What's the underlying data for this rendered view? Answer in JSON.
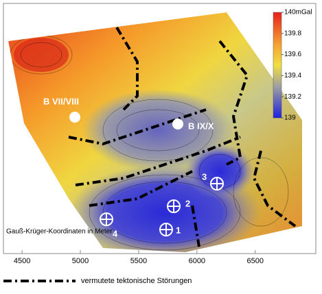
{
  "map": {
    "colorbar": {
      "lim": [
        139,
        140
      ],
      "ticks": [
        {
          "value": 140,
          "label": "140mGal"
        },
        139.8,
        139.6,
        139.4,
        139.2,
        139
      ]
    },
    "xlim": [
      4340,
      7020
    ],
    "xticks": [
      4500,
      5000,
      5500,
      6000,
      6500
    ],
    "labels": {
      "well_a": "B VII/VIII",
      "well_b": "B IX/X",
      "p1": "1",
      "p2": "2",
      "p3": "3",
      "p4": "4"
    },
    "coord_note": "Gauß-Krüger-Koordinaten in Meter"
  },
  "legend": {
    "fault": "vermutete tektonische Störungen"
  }
}
